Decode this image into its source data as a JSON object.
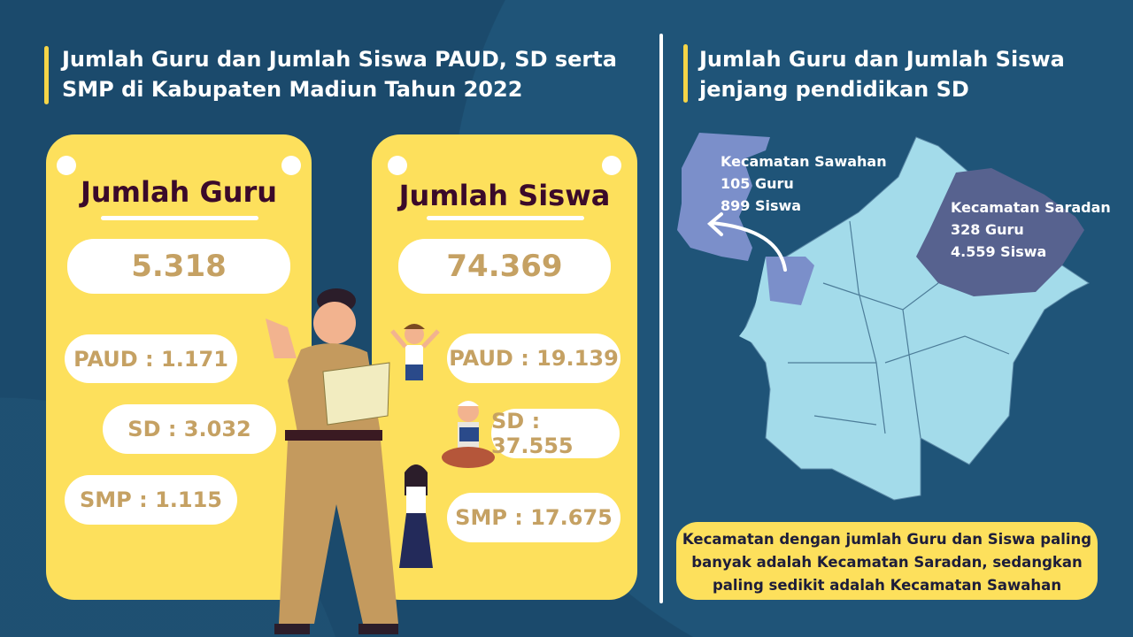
{
  "left_title": "Jumlah Guru dan Jumlah Siswa PAUD, SD serta SMP di Kabupaten Madiun Tahun 2022",
  "guru": {
    "heading": "Jumlah Guru",
    "total": "5.318",
    "paud": "PAUD : 1.171",
    "sd": "SD : 3.032",
    "smp": "SMP : 1.115"
  },
  "siswa": {
    "heading": "Jumlah Siswa",
    "total": "74.369",
    "paud": "PAUD : 19.139",
    "sd": "SD : 37.555",
    "smp": "SMP : 17.675"
  },
  "right_title": "Jumlah Guru dan Jumlah Siswa jenjang pendidikan SD",
  "map": {
    "sawahan": {
      "name": "Kecamatan Sawahan",
      "guru": "105 Guru",
      "siswa": "899 Siswa",
      "color": "#7b8fca"
    },
    "saradan": {
      "name": "Kecamatan Saradan",
      "guru": "328 Guru",
      "siswa": "4.559 Siswa",
      "color": "#57628f"
    },
    "base_color": "#a3dbea"
  },
  "note": "Kecamatan dengan jumlah Guru dan Siswa paling banyak adalah Kecamatan Saradan, sedangkan paling sedikit adalah Kecamatan Sawahan"
}
